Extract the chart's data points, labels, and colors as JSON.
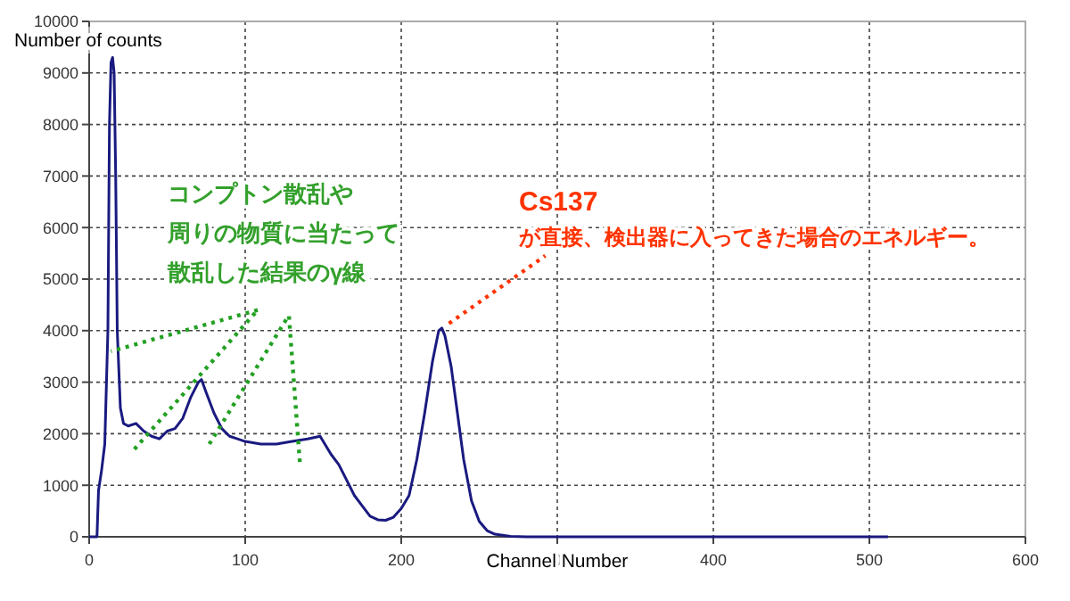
{
  "chart_data": {
    "type": "line",
    "xlabel": "Channel Number",
    "ylabel": "Number of counts",
    "xlim": [
      0,
      600
    ],
    "xticks": [
      0,
      100,
      200,
      300,
      400,
      500,
      600
    ],
    "ylim": [
      0,
      10000
    ],
    "yticks": [
      0,
      1000,
      2000,
      3000,
      4000,
      5000,
      6000,
      7000,
      8000,
      9000,
      10000
    ],
    "grid": true,
    "marker": "none",
    "line_style": "solid",
    "series": [
      {
        "color": "#1a1a80",
        "x": [
          0,
          5,
          6,
          8,
          10,
          12,
          13,
          14,
          15,
          16,
          17,
          18,
          20,
          22,
          25,
          30,
          35,
          40,
          45,
          50,
          55,
          60,
          65,
          70,
          72,
          75,
          80,
          85,
          90,
          95,
          100,
          110,
          120,
          130,
          140,
          148,
          150,
          155,
          160,
          165,
          170,
          175,
          180,
          185,
          190,
          195,
          200,
          205,
          210,
          215,
          220,
          224,
          226,
          228,
          232,
          236,
          240,
          245,
          250,
          255,
          260,
          270,
          280,
          512
        ],
        "values": [
          0,
          0,
          900,
          1300,
          1800,
          4000,
          8000,
          9200,
          9300,
          9000,
          7000,
          4000,
          2500,
          2200,
          2150,
          2200,
          2050,
          1950,
          1900,
          2050,
          2100,
          2300,
          2700,
          3000,
          3050,
          2800,
          2400,
          2100,
          1950,
          1900,
          1850,
          1800,
          1800,
          1850,
          1900,
          1950,
          1850,
          1600,
          1400,
          1100,
          800,
          600,
          400,
          330,
          320,
          380,
          550,
          800,
          1500,
          2400,
          3400,
          4000,
          4050,
          3900,
          3300,
          2400,
          1500,
          700,
          300,
          120,
          50,
          10,
          0,
          0
        ]
      }
    ],
    "annotations": [
      "コンプトン散乱や",
      "周りの物質に当たって",
      {
        "text": "散乱した結果のγ線",
        "x": 14,
        "y": 3600
      },
      "Cs137",
      {
        "text": "が直接、検出器に入ってきた場合のエネルギー。",
        "x": 226,
        "y": 4000
      }
    ]
  }
}
